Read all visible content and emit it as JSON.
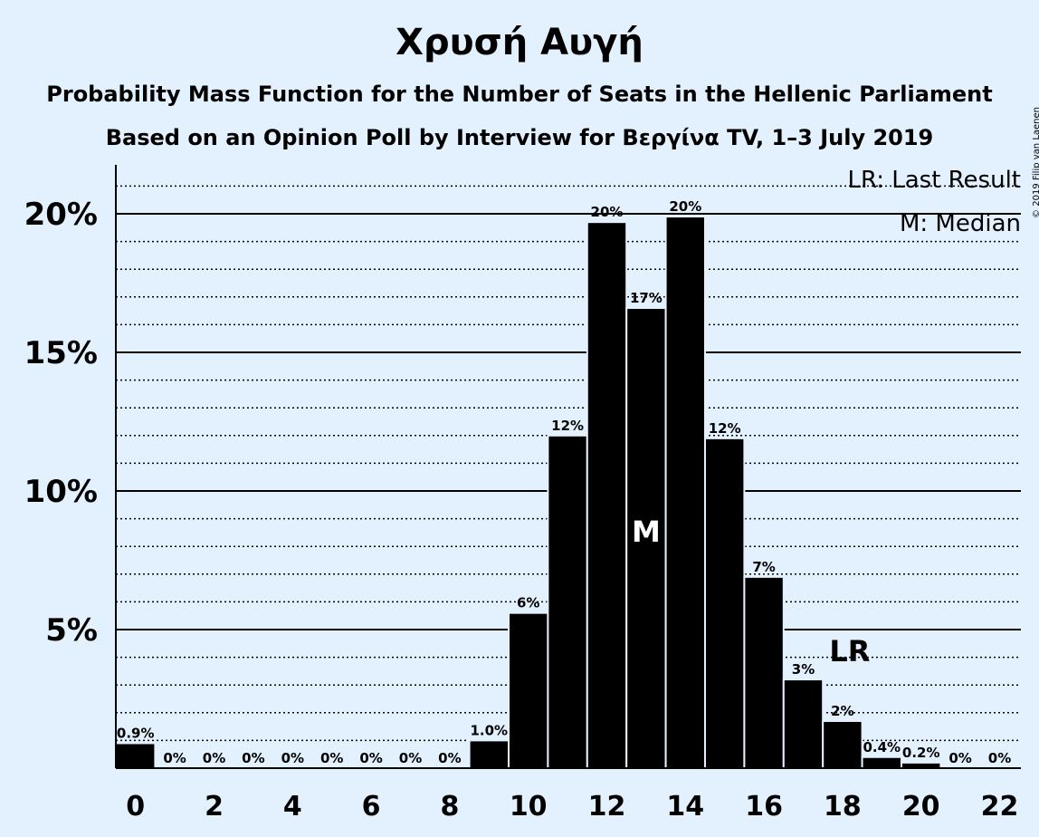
{
  "title": "Χρυσή Αυγή",
  "subtitle1": "Probability Mass Function for the Number of Seats in the Hellenic Parliament",
  "subtitle2": "Based on an Opinion Poll by Interview for Βεργίνα TV, 1–3 July 2019",
  "copyright": "© 2019 Filip van Laenen",
  "legend": {
    "last_result": "LR: Last Result",
    "median": "M: Median"
  },
  "markers": {
    "median_label": "M",
    "median_seat": 13,
    "last_result_label": "LR",
    "last_result_seat": 18
  },
  "colors": {
    "background": "#e3f1fe",
    "bar": "#000000",
    "median_text": "#ffffff"
  },
  "chart_data": {
    "type": "bar",
    "x": [
      0,
      1,
      2,
      3,
      4,
      5,
      6,
      7,
      8,
      9,
      10,
      11,
      12,
      13,
      14,
      15,
      16,
      17,
      18,
      19,
      20,
      21,
      22
    ],
    "values": [
      0.9,
      0,
      0,
      0,
      0,
      0,
      0,
      0,
      0,
      1.0,
      5.6,
      12.0,
      19.7,
      16.6,
      19.9,
      11.9,
      6.9,
      3.2,
      1.7,
      0.4,
      0.2,
      0,
      0
    ],
    "labels": [
      "0.9%",
      "0%",
      "0%",
      "0%",
      "0%",
      "0%",
      "0%",
      "0%",
      "0%",
      "1.0%",
      "6%",
      "12%",
      "20%",
      "17%",
      "20%",
      "12%",
      "7%",
      "3%",
      "2%",
      "0.4%",
      "0.2%",
      "0%",
      "0%"
    ],
    "xticks": [
      "0",
      "2",
      "4",
      "6",
      "8",
      "10",
      "12",
      "14",
      "16",
      "18",
      "20",
      "22"
    ],
    "yticks": [
      "5%",
      "10%",
      "15%",
      "20%"
    ],
    "ylim": [
      0,
      21.7
    ],
    "grid": true,
    "legend_position": "top-right"
  }
}
